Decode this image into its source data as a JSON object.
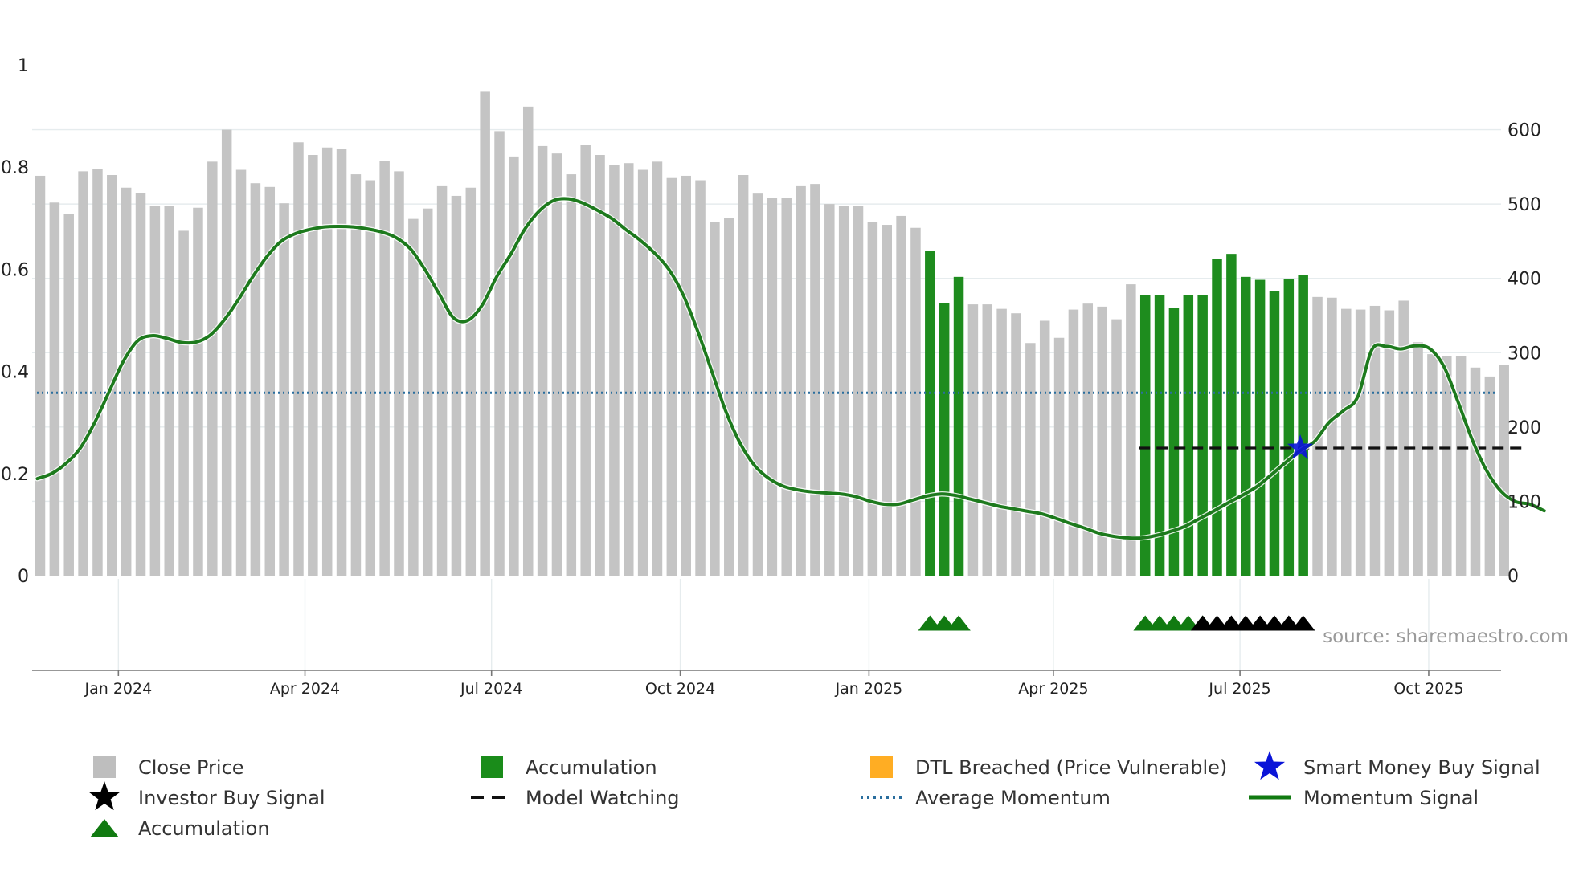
{
  "chart_data": {
    "type": "bar",
    "title": "",
    "source": "source: sharemaestro.com",
    "left_axis": {
      "ylim": [
        0,
        1
      ],
      "ticks": [
        0,
        0.2,
        0.4,
        0.6,
        0.8,
        1
      ],
      "tick_labels": [
        "0",
        "0.2",
        "0.4",
        "0.6",
        "0.8",
        "1"
      ]
    },
    "right_axis": {
      "ylim": [
        0,
        687
      ],
      "ticks": [
        0,
        100,
        200,
        300,
        400,
        500,
        600
      ],
      "tick_labels": [
        "0",
        "100",
        "200",
        "300",
        "400",
        "500",
        "600"
      ]
    },
    "x_axis": {
      "start_week_index": 0,
      "tick_weeks": [
        5.45,
        18.45,
        31.45,
        44.6,
        57.75,
        70.6,
        83.6,
        96.75
      ],
      "tick_labels": [
        "Jan 2024",
        "Apr 2024",
        "Jul 2024",
        "Oct 2024",
        "Jan 2025",
        "Apr 2025",
        "Jul 2025",
        "Oct 2025"
      ]
    },
    "series": [
      {
        "name": "Close Price",
        "axis": "right",
        "values": [
          538,
          502,
          487,
          544,
          547,
          539,
          522,
          515,
          498,
          497,
          464,
          495,
          557,
          600,
          546,
          528,
          523,
          501,
          583,
          566,
          576,
          574,
          540,
          532,
          558,
          544,
          480,
          494,
          524,
          511,
          522,
          652,
          598,
          564,
          631,
          578,
          568,
          540,
          579,
          566,
          552,
          555,
          546,
          557,
          535,
          538,
          532,
          476,
          481,
          539,
          514,
          508,
          508,
          524,
          527,
          500,
          497,
          497,
          476,
          472,
          484,
          468,
          437,
          367,
          402,
          365,
          365,
          359,
          353,
          313,
          343,
          320,
          358,
          366,
          362,
          345,
          392,
          378,
          377,
          360,
          378,
          377,
          426,
          433,
          402,
          398,
          383,
          399,
          404,
          375,
          374,
          359,
          358,
          363,
          357,
          370,
          314,
          298,
          295,
          295,
          280,
          268,
          283
        ],
        "colors_by_index": {
          "accumulation": [
            62,
            63,
            64,
            77,
            78,
            79,
            80,
            81,
            82,
            83,
            84,
            85,
            86,
            87,
            88
          ]
        }
      },
      {
        "name": "Momentum Signal",
        "axis": "left",
        "values": [
          0.19,
          0.2,
          0.22,
          0.25,
          0.3,
          0.36,
          0.42,
          0.46,
          0.47,
          0.465,
          0.457,
          0.457,
          0.47,
          0.5,
          0.54,
          0.585,
          0.625,
          0.655,
          0.67,
          0.678,
          0.683,
          0.684,
          0.683,
          0.679,
          0.673,
          0.662,
          0.64,
          0.6,
          0.552,
          0.505,
          0.5,
          0.53,
          0.585,
          0.63,
          0.68,
          0.715,
          0.735,
          0.738,
          0.73,
          0.716,
          0.7,
          0.678,
          0.657,
          0.632,
          0.6,
          0.55,
          0.48,
          0.4,
          0.32,
          0.258,
          0.215,
          0.19,
          0.175,
          0.168,
          0.164,
          0.162,
          0.16,
          0.155,
          0.146,
          0.14,
          0.14,
          0.148,
          0.156,
          0.16,
          0.157,
          0.15,
          0.143,
          0.136,
          0.131,
          0.126,
          0.121,
          0.112,
          0.102,
          0.093,
          0.083,
          0.077,
          0.074,
          0.074,
          0.079,
          0.087,
          0.097,
          0.112,
          0.127,
          0.143,
          0.158,
          0.175,
          0.198,
          0.222,
          0.245,
          0.263,
          0.3,
          0.323,
          0.35,
          0.443,
          0.449,
          0.444,
          0.45,
          0.445,
          0.41,
          0.34,
          0.265,
          0.205,
          0.165,
          0.145,
          0.14,
          0.127
        ],
        "color": "#1d7a1d"
      },
      {
        "name": "Average Momentum",
        "axis": "left",
        "value": 0.358,
        "color": "#2a6e9e"
      },
      {
        "name": "Model Watching",
        "axis": "left",
        "value": 0.25,
        "x_range": [
          77,
          103
        ]
      }
    ],
    "markers": [
      {
        "name": "Accumulation",
        "symbol": "triangle",
        "color": "#117a11",
        "weeks": [
          62,
          63,
          64,
          77,
          78,
          79,
          80,
          81
        ]
      },
      {
        "name": "Investor Buy Signal",
        "symbol": "triangle",
        "color": "#000000",
        "weeks": [
          81,
          82,
          83,
          84,
          85,
          86,
          87,
          88
        ]
      },
      {
        "name": "Smart Money Buy Signal",
        "symbol": "star",
        "color": "#0a14d8",
        "weeks": [
          87.8
        ],
        "y": 0.25
      }
    ],
    "legend": {
      "placement": "bottom",
      "entries": [
        {
          "label": "Close Price",
          "swatch": "gray-bar",
          "color": "#bebebe"
        },
        {
          "label": "Accumulation",
          "swatch": "square",
          "color": "#1a8c1a"
        },
        {
          "label": "DTL Breached (Price Vulnerable)",
          "swatch": "square",
          "color": "#ffad23"
        },
        {
          "label": "Smart Money Buy Signal",
          "swatch": "star",
          "color": "#0a14d8"
        },
        {
          "label": "Investor Buy Signal",
          "swatch": "star",
          "color": "#000000"
        },
        {
          "label": "Model Watching",
          "swatch": "dash",
          "color": "#111111"
        },
        {
          "label": "Average Momentum",
          "swatch": "dots",
          "color": "#2a6e9e"
        },
        {
          "label": "Momentum Signal",
          "swatch": "line",
          "color": "#117a11"
        },
        {
          "label": "Accumulation",
          "swatch": "triangle",
          "color": "#117a11"
        }
      ]
    },
    "colors": {
      "bar_default": "#c4c4c4",
      "bar_accumulation": "#1e8c1e",
      "grid": "#e6ecee",
      "axis": "#777777"
    }
  }
}
